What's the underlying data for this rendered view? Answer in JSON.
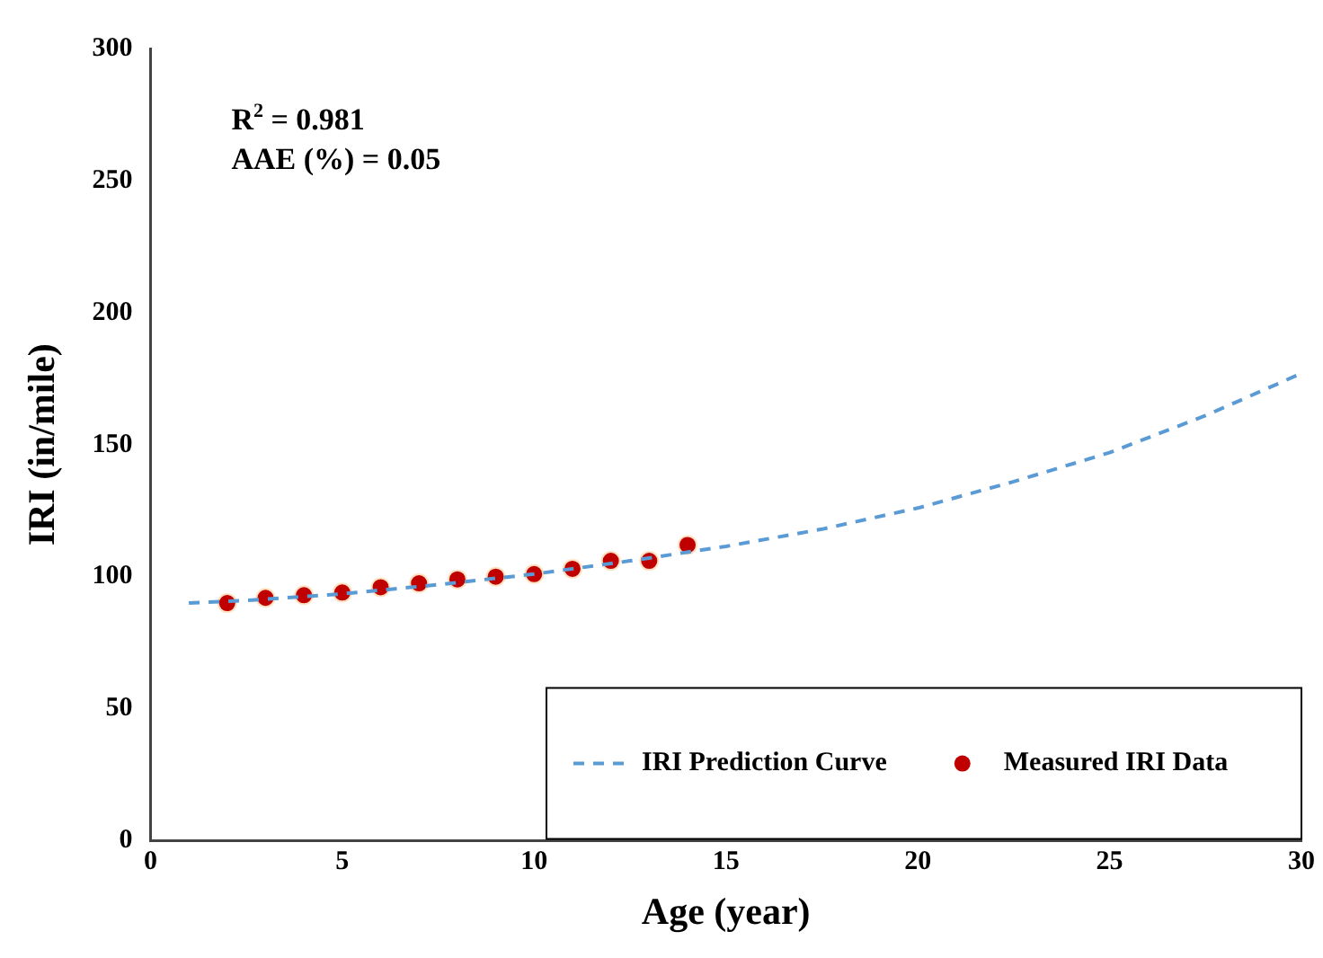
{
  "chart_data": {
    "type": "scatter",
    "xlabel": "Age (year)",
    "ylabel": "IRI (in/mile)",
    "xlim": [
      0,
      30
    ],
    "xticks": [
      0,
      5,
      10,
      15,
      20,
      25,
      30
    ],
    "ylim": [
      0,
      300
    ],
    "yticks": [
      0,
      50,
      100,
      150,
      200,
      250,
      300
    ],
    "grid": false,
    "legend": "bottom right",
    "annotations": [
      "R$^{2}$ = 0.981",
      "AAE (%) = 0.05"
    ],
    "series": [
      {
        "name": "IRI Prediction Curve",
        "type": "line",
        "color": "#5b9bd5",
        "line_style": "dashed",
        "marker": "none",
        "x": [
          1,
          2.5,
          5,
          7.5,
          10,
          12.5,
          15,
          17.5,
          20,
          22.5,
          25,
          27.5,
          30
        ],
        "values": [
          90,
          91,
          93.5,
          97,
          101,
          106,
          111.5,
          118,
          126,
          136,
          147,
          161,
          177
        ]
      },
      {
        "name": "Measured IRI Data",
        "color": "#c00000",
        "marker": "circle",
        "x": [
          2,
          3,
          4,
          5,
          6,
          7,
          8,
          9,
          10,
          11,
          12,
          13,
          14
        ],
        "values": [
          90,
          92,
          93,
          94,
          96,
          97.5,
          99,
          100,
          101,
          103,
          106,
          106,
          112
        ]
      }
    ]
  }
}
